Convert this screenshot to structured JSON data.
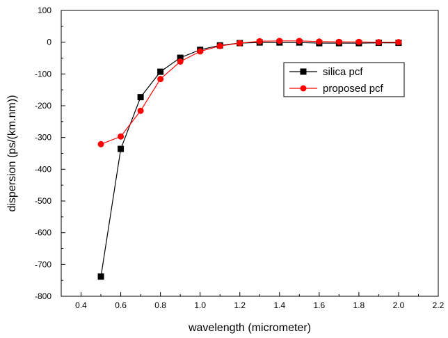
{
  "chart_data": {
    "type": "line",
    "xlabel": "wavelength (micrometer)",
    "ylabel": "dispersion (ps/(km.nm))",
    "xlim": [
      0.3,
      2.2
    ],
    "ylim": [
      -800,
      100
    ],
    "xticks": [
      "0.4",
      "0.6",
      "0.8",
      "1.0",
      "1.2",
      "1.4",
      "1.6",
      "1.8",
      "2.0",
      "2.2"
    ],
    "yticks": [
      "100",
      "0",
      "-100",
      "-200",
      "-300",
      "-400",
      "-500",
      "-600",
      "-700",
      "-800"
    ],
    "legend_position": "upper-right",
    "series": [
      {
        "name": "silica pcf",
        "color": "#000000",
        "marker": "square",
        "x": [
          0.5,
          0.6,
          0.7,
          0.8,
          0.9,
          1.0,
          1.1,
          1.2,
          1.3,
          1.4,
          1.5,
          1.6,
          1.7,
          1.8,
          1.9,
          2.0
        ],
        "y": [
          -738,
          -336,
          -173,
          -93,
          -49,
          -24,
          -10,
          -3,
          -1,
          -1,
          -1,
          -3,
          -3,
          -3,
          -2,
          -2
        ]
      },
      {
        "name": "proposed pcf",
        "color": "#ff0000",
        "marker": "circle",
        "x": [
          0.5,
          0.6,
          0.7,
          0.8,
          0.9,
          1.0,
          1.1,
          1.2,
          1.3,
          1.4,
          1.5,
          1.6,
          1.7,
          1.8,
          1.9,
          2.0
        ],
        "y": [
          -321,
          -297,
          -216,
          -116,
          -61,
          -29,
          -12,
          -3,
          3,
          4,
          4,
          2,
          1,
          1,
          0,
          0
        ]
      }
    ]
  }
}
